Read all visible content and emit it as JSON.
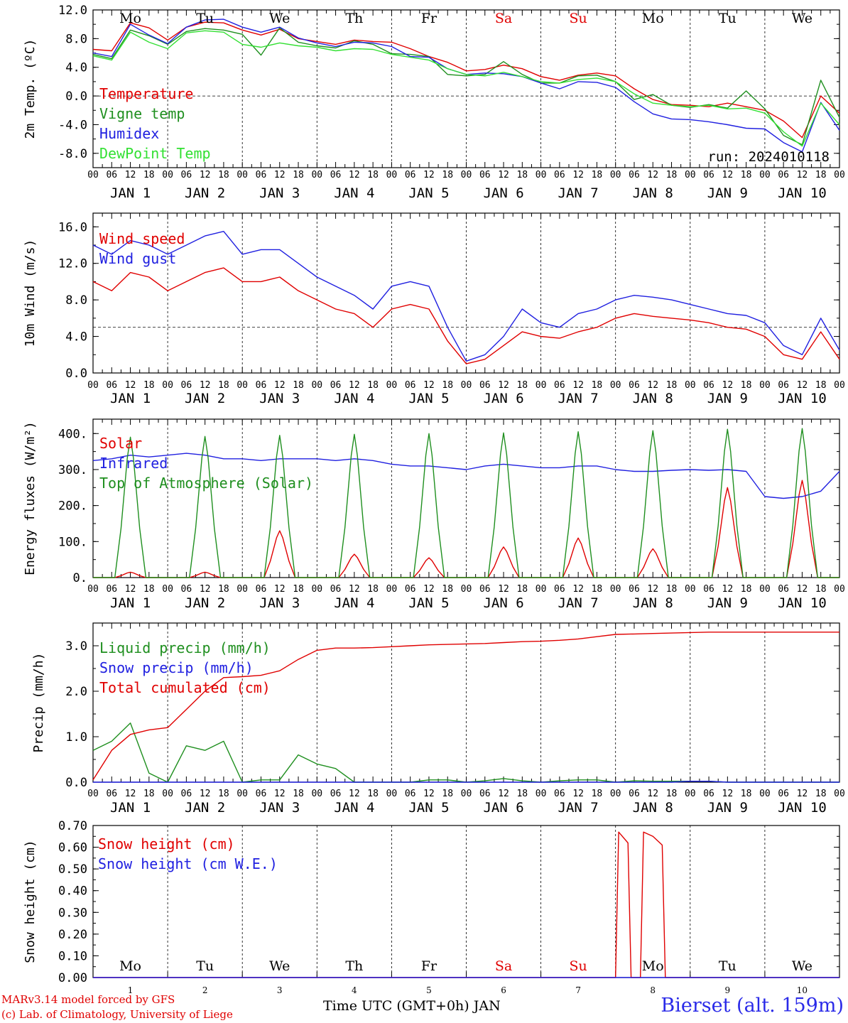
{
  "days": {
    "names": [
      "Mo",
      "Tu",
      "We",
      "Th",
      "Fr",
      "Sa",
      "Su",
      "Mo",
      "Tu",
      "We"
    ],
    "name_colors": [
      "#000000",
      "#000000",
      "#000000",
      "#000000",
      "#000000",
      "#e00000",
      "#e00000",
      "#000000",
      "#000000",
      "#000000"
    ],
    "dates": [
      "JAN  1",
      "JAN  2",
      "JAN  3",
      "JAN  4",
      "JAN  5",
      "JAN  6",
      "JAN  7",
      "JAN  8",
      "JAN  9",
      "JAN 10"
    ],
    "numbers": [
      "1",
      "2",
      "3",
      "4",
      "5",
      "6",
      "7",
      "8",
      "9",
      "10"
    ],
    "hour_ticks": [
      "00",
      "06",
      "12",
      "18"
    ],
    "end_hour": "00"
  },
  "footer": {
    "model": "MARv3.14 model forced by GFS",
    "lab": "(c) Lab. of Climatology, University of Liege",
    "xlabel": "Time UTC (GMT+0h) JAN",
    "station": "Bierset (alt. 159m)"
  },
  "chart_data": [
    {
      "type": "line",
      "ylabel": "2m Temp. (ºC)",
      "yticks": [
        "12.0",
        "8.0",
        "4.0",
        "0.0",
        "-4.0",
        "-8.0"
      ],
      "ylim": [
        -10,
        12
      ],
      "reference_line": 0,
      "run_label": "run: 2024010118",
      "x_hours": [
        0,
        6,
        12,
        18,
        24,
        30,
        36,
        42,
        48,
        54,
        60,
        66,
        72,
        78,
        84,
        90,
        96,
        102,
        108,
        114,
        120,
        126,
        132,
        138,
        144,
        150,
        156,
        162,
        168,
        174,
        180,
        186,
        192,
        198,
        204,
        210,
        216,
        222,
        228,
        234,
        240
      ],
      "series": [
        {
          "name": "Temperature",
          "color": "#e00000",
          "values": [
            6.5,
            6.3,
            10.2,
            9.5,
            7.8,
            9.6,
            10.3,
            10.2,
            9.2,
            8.5,
            9.3,
            8.0,
            7.6,
            7.2,
            7.8,
            7.6,
            7.5,
            6.6,
            5.5,
            4.7,
            3.5,
            3.7,
            4.3,
            3.8,
            2.7,
            2.2,
            2.9,
            3.2,
            2.8,
            1.0,
            -0.5,
            -1.2,
            -1.3,
            -1.5,
            -1.0,
            -1.5,
            -2.0,
            -3.5,
            -5.8,
            0.0,
            -2.4
          ]
        },
        {
          "name": "Vigne temp",
          "color": "#1f8f1f",
          "values": [
            5.8,
            5.2,
            9.2,
            8.4,
            7.2,
            9.0,
            9.4,
            9.2,
            8.6,
            5.7,
            9.5,
            7.5,
            7.0,
            6.7,
            7.7,
            7.2,
            5.9,
            5.8,
            5.5,
            3.0,
            2.8,
            3.0,
            4.8,
            3.0,
            1.8,
            1.8,
            2.8,
            2.9,
            2.0,
            -0.5,
            0.2,
            -1.3,
            -1.6,
            -1.2,
            -1.7,
            0.7,
            -1.8,
            -5.5,
            -6.8,
            2.2,
            -3.0
          ]
        },
        {
          "name": "Humidex",
          "color": "#2020e0",
          "values": [
            6.0,
            5.5,
            10.0,
            8.5,
            7.3,
            9.6,
            10.6,
            10.7,
            9.6,
            8.9,
            9.6,
            8.1,
            7.4,
            6.9,
            7.5,
            7.4,
            6.9,
            5.5,
            5.4,
            3.8,
            3.0,
            3.2,
            3.1,
            2.7,
            1.8,
            1.0,
            2.0,
            1.9,
            1.2,
            -0.8,
            -2.5,
            -3.2,
            -3.3,
            -3.6,
            -4.0,
            -4.5,
            -4.6,
            -6.5,
            -7.8,
            -0.9,
            -4.8
          ]
        },
        {
          "name": "DewPoint Temp",
          "color": "#33e033",
          "values": [
            5.6,
            5.0,
            8.9,
            7.5,
            6.6,
            8.8,
            9.1,
            8.9,
            7.2,
            6.8,
            7.4,
            7.0,
            6.8,
            6.3,
            6.6,
            6.5,
            5.8,
            5.4,
            5.0,
            3.8,
            3.0,
            2.8,
            3.3,
            2.7,
            2.0,
            1.8,
            2.3,
            2.5,
            2.0,
            0.3,
            -1.0,
            -1.3,
            -1.5,
            -1.3,
            -1.8,
            -1.7,
            -2.4,
            -5.0,
            -7.0,
            -1.0,
            -4.0
          ]
        }
      ]
    },
    {
      "type": "line",
      "ylabel": "10m Wind (m/s)",
      "yticks": [
        "16.0",
        "12.0",
        "8.0",
        "4.0",
        "0.0"
      ],
      "ylim": [
        0,
        17.5
      ],
      "reference_line": 5,
      "x_hours": [
        0,
        6,
        12,
        18,
        24,
        30,
        36,
        42,
        48,
        54,
        60,
        66,
        72,
        78,
        84,
        90,
        96,
        102,
        108,
        114,
        120,
        126,
        132,
        138,
        144,
        150,
        156,
        162,
        168,
        174,
        180,
        186,
        192,
        198,
        204,
        210,
        216,
        222,
        228,
        234,
        240
      ],
      "series": [
        {
          "name": "Wind speed",
          "color": "#e00000",
          "values": [
            10.0,
            9.0,
            11.0,
            10.5,
            9.0,
            10.0,
            11.0,
            11.5,
            10.0,
            10.0,
            10.5,
            9.0,
            8.0,
            7.0,
            6.5,
            5.0,
            7.0,
            7.5,
            7.0,
            3.5,
            1.0,
            1.5,
            3.0,
            4.5,
            4.0,
            3.8,
            4.5,
            5.0,
            6.0,
            6.5,
            6.2,
            6.0,
            5.8,
            5.5,
            5.0,
            4.8,
            4.0,
            2.0,
            1.5,
            4.5,
            1.5
          ]
        },
        {
          "name": "Wind gust",
          "color": "#2020e0",
          "values": [
            14.0,
            13.0,
            14.5,
            14.0,
            13.0,
            14.0,
            15.0,
            15.5,
            13.0,
            13.5,
            13.5,
            12.0,
            10.5,
            9.5,
            8.5,
            7.0,
            9.5,
            10.0,
            9.5,
            5.0,
            1.3,
            2.0,
            4.0,
            7.0,
            5.5,
            5.0,
            6.5,
            7.0,
            8.0,
            8.5,
            8.3,
            8.0,
            7.5,
            7.0,
            6.5,
            6.3,
            5.5,
            3.0,
            2.0,
            6.0,
            2.5
          ]
        }
      ]
    },
    {
      "type": "line",
      "ylabel": "Energy fluxes (W/m²)",
      "yticks": [
        "400.",
        "300.",
        "200.",
        "100.",
        "0."
      ],
      "ylim": [
        0,
        440
      ],
      "x_hours": [
        0,
        6,
        12,
        18,
        24,
        30,
        36,
        42,
        48,
        54,
        60,
        66,
        72,
        78,
        84,
        90,
        96,
        102,
        108,
        114,
        120,
        126,
        132,
        138,
        144,
        150,
        156,
        162,
        168,
        174,
        180,
        186,
        192,
        198,
        204,
        210,
        216,
        222,
        228,
        234,
        240
      ],
      "series": [
        {
          "name": "Solar",
          "color": "#e00000",
          "diurnal": true,
          "peaks": [
            15,
            15,
            130,
            65,
            55,
            85,
            110,
            80,
            250,
            270
          ]
        },
        {
          "name": "Infrared",
          "color": "#2020e0",
          "values": [
            325,
            330,
            340,
            335,
            340,
            345,
            340,
            330,
            330,
            325,
            330,
            330,
            330,
            325,
            330,
            325,
            315,
            310,
            310,
            305,
            300,
            310,
            315,
            310,
            305,
            305,
            310,
            310,
            300,
            295,
            295,
            298,
            300,
            298,
            300,
            295,
            225,
            220,
            225,
            240,
            295
          ]
        },
        {
          "name": "Top of Atmosphere (Solar)",
          "color": "#1f8f1f",
          "diurnal": true,
          "peaks": [
            390,
            392,
            395,
            398,
            400,
            402,
            405,
            408,
            412,
            414
          ]
        }
      ]
    },
    {
      "type": "line",
      "ylabel": "Precip (mm/h)",
      "yticks": [
        "3.0",
        "2.0",
        "1.0",
        "0.0"
      ],
      "ylim": [
        0,
        3.5
      ],
      "x_hours": [
        0,
        6,
        12,
        18,
        24,
        30,
        36,
        42,
        48,
        54,
        60,
        66,
        72,
        78,
        84,
        90,
        96,
        102,
        108,
        114,
        120,
        126,
        132,
        138,
        144,
        150,
        156,
        162,
        168,
        174,
        180,
        186,
        192,
        198,
        204,
        210,
        216,
        222,
        228,
        234,
        240
      ],
      "series": [
        {
          "name": "Liquid precip (mm/h)",
          "color": "#1f8f1f",
          "values": [
            0.7,
            0.9,
            1.3,
            0.2,
            0.0,
            0.8,
            0.7,
            0.9,
            0.0,
            0.05,
            0.05,
            0.6,
            0.4,
            0.3,
            0.0,
            0.0,
            0.0,
            0.0,
            0.05,
            0.05,
            0.0,
            0.03,
            0.08,
            0.03,
            0.0,
            0.03,
            0.05,
            0.05,
            0.0,
            0.03,
            0.02,
            0.02,
            0.02,
            0.02,
            0.0,
            0.0,
            0.0,
            0.0,
            0.0,
            0.0,
            0.0
          ]
        },
        {
          "name": "Snow precip (mm/h)",
          "color": "#2020e0",
          "values": [
            0,
            0,
            0,
            0,
            0,
            0,
            0,
            0,
            0,
            0,
            0,
            0,
            0,
            0,
            0,
            0,
            0,
            0,
            0,
            0,
            0,
            0,
            0,
            0,
            0,
            0,
            0,
            0,
            0,
            0,
            0,
            0,
            0.02,
            0.02,
            0,
            0,
            0,
            0,
            0,
            0,
            0
          ]
        },
        {
          "name": "Total cumulated (cm)",
          "color": "#e00000",
          "values": [
            0.05,
            0.7,
            1.05,
            1.15,
            1.2,
            1.6,
            2.0,
            2.3,
            2.32,
            2.35,
            2.45,
            2.7,
            2.9,
            2.95,
            2.95,
            2.96,
            2.98,
            3.0,
            3.02,
            3.03,
            3.04,
            3.05,
            3.07,
            3.09,
            3.1,
            3.12,
            3.15,
            3.2,
            3.25,
            3.26,
            3.27,
            3.28,
            3.29,
            3.3,
            3.3,
            3.3,
            3.3,
            3.3,
            3.3,
            3.3,
            3.3
          ]
        }
      ]
    },
    {
      "type": "line",
      "ylabel": "Snow height (cm)",
      "yticks": [
        "0.70",
        "0.60",
        "0.50",
        "0.40",
        "0.30",
        "0.20",
        "0.10",
        "0.00"
      ],
      "ylim": [
        0,
        0.7
      ],
      "series": [
        {
          "name": "Snow height (cm)",
          "color": "#e00000",
          "points": [
            [
              0,
              0
            ],
            [
              168,
              0
            ],
            [
              169,
              0.67
            ],
            [
              172,
              0.62
            ],
            [
              173,
              0
            ],
            [
              176,
              0
            ],
            [
              177,
              0.67
            ],
            [
              180,
              0.65
            ],
            [
              183,
              0.61
            ],
            [
              184,
              0
            ],
            [
              240,
              0
            ]
          ]
        },
        {
          "name": "Snow height (cm W.E.)",
          "color": "#2020e0",
          "points": [
            [
              0,
              0
            ],
            [
              240,
              0
            ]
          ]
        }
      ]
    }
  ]
}
